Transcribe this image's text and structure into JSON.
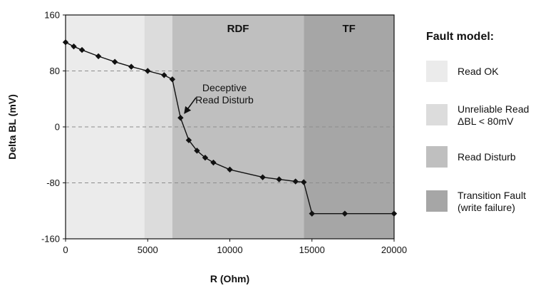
{
  "chart_data": {
    "type": "line",
    "xlabel": "R (Ohm)",
    "ylabel": "Delta BL (mV)",
    "xlim": [
      0,
      20000
    ],
    "ylim": [
      -160,
      160
    ],
    "xticks": [
      "0",
      "5000",
      "10000",
      "15000",
      "20000"
    ],
    "yticks": [
      "160",
      "80",
      "0",
      "-80",
      "-160"
    ],
    "x_tick_values": [
      0,
      5000,
      10000,
      15000,
      20000
    ],
    "y_tick_values": [
      160,
      80,
      0,
      -80,
      -160
    ],
    "dashed_grid_y": [
      80,
      0,
      -80
    ],
    "regions": [
      {
        "key": "read_ok",
        "x_from": 0,
        "x_to": 4800,
        "label": "",
        "color": "#ebebeb"
      },
      {
        "key": "unreliable",
        "x_from": 4800,
        "x_to": 6500,
        "label": "",
        "color": "#dcdcdc"
      },
      {
        "key": "read_disturb",
        "x_from": 6500,
        "x_to": 14500,
        "label": "RDF",
        "color": "#bfbfbf"
      },
      {
        "key": "transition",
        "x_from": 14500,
        "x_to": 20000,
        "label": "TF",
        "color": "#a6a6a6"
      }
    ],
    "series": [
      {
        "x": [
          0,
          500,
          1000,
          2000,
          3000,
          4000,
          5000,
          6000,
          6500,
          7000,
          7500,
          8000,
          8500,
          9000,
          10000,
          12000,
          13000,
          14000,
          14500,
          15000,
          17000,
          20000
        ],
        "y": [
          121,
          115,
          110,
          101,
          93,
          86,
          80,
          74,
          68,
          13,
          -19,
          -34,
          -44,
          -51,
          -61,
          -72,
          -75,
          -78,
          -79,
          -124,
          -124,
          -124
        ]
      }
    ],
    "annotation": {
      "lines": [
        "Deceptive",
        "Read Disturb"
      ],
      "points_to": {
        "x": 7000,
        "y": 13
      }
    },
    "legend": {
      "title": "Fault model:",
      "position": "right",
      "entries": [
        {
          "lines": [
            "Read OK"
          ],
          "color": "#ebebeb"
        },
        {
          "lines": [
            "Unreliable Read",
            "ΔBL < 80mV"
          ],
          "color": "#dcdcdc"
        },
        {
          "lines": [
            "Read Disturb"
          ],
          "color": "#bfbfbf"
        },
        {
          "lines": [
            "Transition Fault",
            "(write failure)"
          ],
          "color": "#a6a6a6"
        }
      ]
    }
  }
}
